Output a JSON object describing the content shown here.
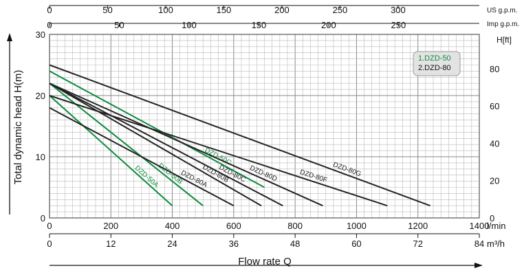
{
  "chart_data": {
    "type": "line",
    "ylabel": "Total dynamic head H(m)",
    "xlabel": "Flow rate Q",
    "right_axis_label": "H[ft]",
    "xlim_lmin": [
      0,
      1400
    ],
    "ylim_m": [
      0,
      30
    ],
    "grid": true,
    "legend_position": "top-right",
    "legend": [
      {
        "label": "1.DZD-50",
        "color": "#0a8a3c"
      },
      {
        "label": "2.DZD-80",
        "color": "#222222"
      }
    ],
    "top_axes": [
      {
        "unit": "US g.p.m.",
        "ticks": [
          "0",
          "50",
          "100",
          "150",
          "200",
          "250",
          "300"
        ],
        "values": [
          0,
          50,
          100,
          150,
          200,
          250,
          300
        ],
        "lmin_per_unit": 3.785
      },
      {
        "unit": "Imp g.p.m.",
        "ticks": [
          "0",
          "50",
          "100",
          "150",
          "200",
          "250"
        ],
        "values": [
          0,
          50,
          100,
          150,
          200,
          250
        ],
        "lmin_per_unit": 4.546
      }
    ],
    "bottom_axes": [
      {
        "unit": "l/min",
        "ticks": [
          "0",
          "200",
          "400",
          "600",
          "800",
          "1000",
          "1200",
          "1400"
        ],
        "values": [
          0,
          200,
          400,
          600,
          800,
          1000,
          1200,
          1400
        ],
        "lmin_per_unit": 1
      },
      {
        "unit": "m³/h",
        "ticks": [
          "0",
          "12",
          "24",
          "36",
          "48",
          "60",
          "72",
          "84"
        ],
        "values": [
          0,
          12,
          24,
          36,
          48,
          60,
          72,
          84
        ],
        "lmin_per_unit": 16.6667
      }
    ],
    "left_ticks": [
      "0",
      "10",
      "20",
      "30"
    ],
    "left_tick_values": [
      0,
      10,
      20,
      30
    ],
    "right_ticks": [
      "0",
      "20",
      "40",
      "60",
      "80"
    ],
    "right_tick_values_ft": [
      0,
      20,
      40,
      60,
      80
    ],
    "series": [
      {
        "name": "DZD-50A",
        "color": "#0a8a3c",
        "x": [
          0,
          400
        ],
        "y": [
          20,
          2
        ]
      },
      {
        "name": "DZD-50B",
        "color": "#0a8a3c",
        "x": [
          0,
          500
        ],
        "y": [
          22,
          2
        ]
      },
      {
        "name": "DZD-50C",
        "color": "#0a8a3c",
        "x": [
          0,
          700
        ],
        "y": [
          24,
          5
        ]
      },
      {
        "name": "DZD-80A",
        "color": "#222222",
        "x": [
          0,
          600
        ],
        "y": [
          18,
          2
        ]
      },
      {
        "name": "DZD-80B",
        "color": "#222222",
        "x": [
          0,
          690
        ],
        "y": [
          22,
          2
        ]
      },
      {
        "name": "DZD-80C",
        "color": "#222222",
        "x": [
          0,
          760
        ],
        "y": [
          22,
          2
        ]
      },
      {
        "name": "DZD-80D",
        "color": "#222222",
        "x": [
          0,
          890
        ],
        "y": [
          22,
          2
        ]
      },
      {
        "name": "DZD-80F",
        "color": "#222222",
        "x": [
          0,
          1100
        ],
        "y": [
          20,
          2
        ]
      },
      {
        "name": "DZD-80G",
        "color": "#222222",
        "x": [
          0,
          1240
        ],
        "y": [
          25,
          2
        ]
      }
    ]
  }
}
